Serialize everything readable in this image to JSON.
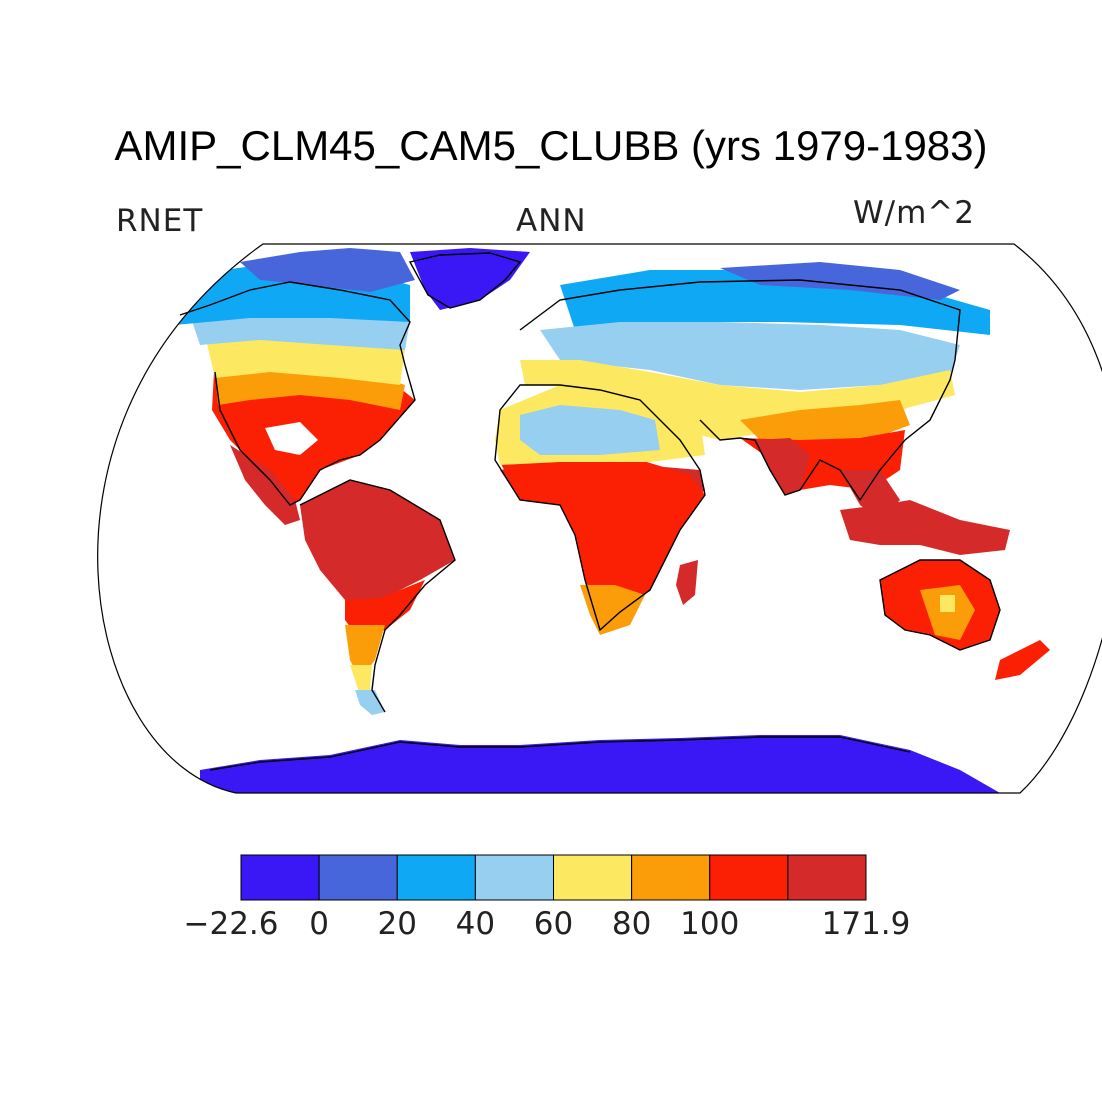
{
  "title": "AMIP_CLM45_CAM5_CLUBB (yrs 1979-1983)",
  "left_label": "RNET",
  "center_label": "ANN",
  "right_label": "W/m^2",
  "colorbar": {
    "colors": [
      "#3a17f5",
      "#4866dc",
      "#0ea8f5",
      "#96cff0",
      "#fde961",
      "#fb9d08",
      "#fb1f04",
      "#d42a2a"
    ],
    "labels": [
      "−22.6",
      "0",
      "20",
      "40",
      "60",
      "80",
      "100",
      "171.9"
    ],
    "bounds": [
      -22.6,
      0,
      20,
      40,
      60,
      80,
      100,
      171.9
    ]
  },
  "chart_data": {
    "type": "filled-contour map",
    "projection": "Robinson",
    "variable": "RNET",
    "season": "ANN",
    "units": "W/m^2",
    "range": [
      -22.6,
      171.9
    ],
    "levels": [
      0,
      20,
      40,
      60,
      80,
      100
    ]
  }
}
